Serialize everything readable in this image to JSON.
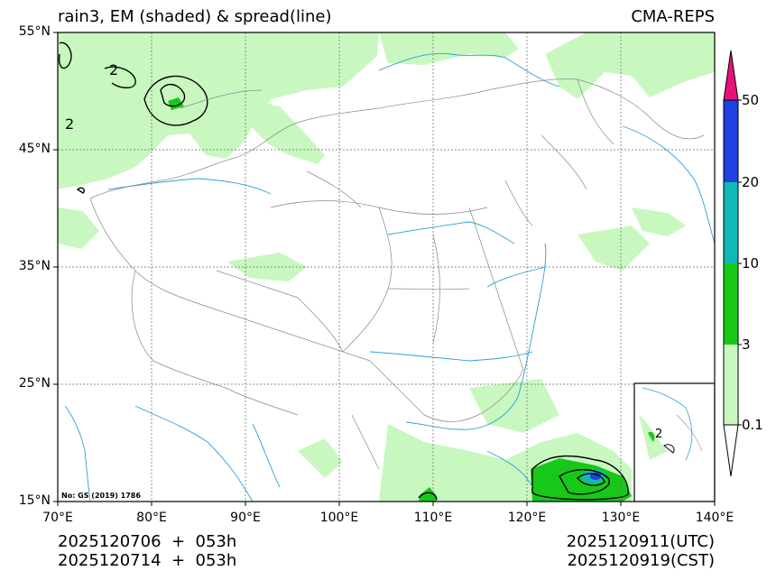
{
  "header": {
    "title": "rain3, EM (shaded) & spread(line)",
    "source": "CMA-REPS"
  },
  "map": {
    "lat_labels": [
      "55°N",
      "45°N",
      "35°N",
      "25°N",
      "15°N"
    ],
    "lon_labels": [
      "70°E",
      "80°E",
      "90°E",
      "100°E",
      "110°E",
      "120°E",
      "130°E",
      "140°E"
    ],
    "extent": {
      "lon_min": 70,
      "lon_max": 140,
      "lat_min": 15,
      "lat_max": 55
    },
    "approval_note": "No: GS (2019) 1786",
    "spread_contour_label": "2"
  },
  "colorbar": {
    "levels": [
      "0.1",
      "3",
      "10",
      "20",
      "50"
    ],
    "colors": {
      "lt_0_1": "#ffffff",
      "c_0_1_3": "#c8f8c0",
      "c_3_10": "#18c818",
      "c_10_20": "#10b8b8",
      "c_20_50": "#2040e0",
      "gt_50": "#e8107a"
    }
  },
  "footer": {
    "init_utc": "2025120706  +  053h",
    "init_cst": "2025120714  +  053h",
    "valid_utc": "2025120911(UTC)",
    "valid_cst": "2025120919(CST)"
  }
}
